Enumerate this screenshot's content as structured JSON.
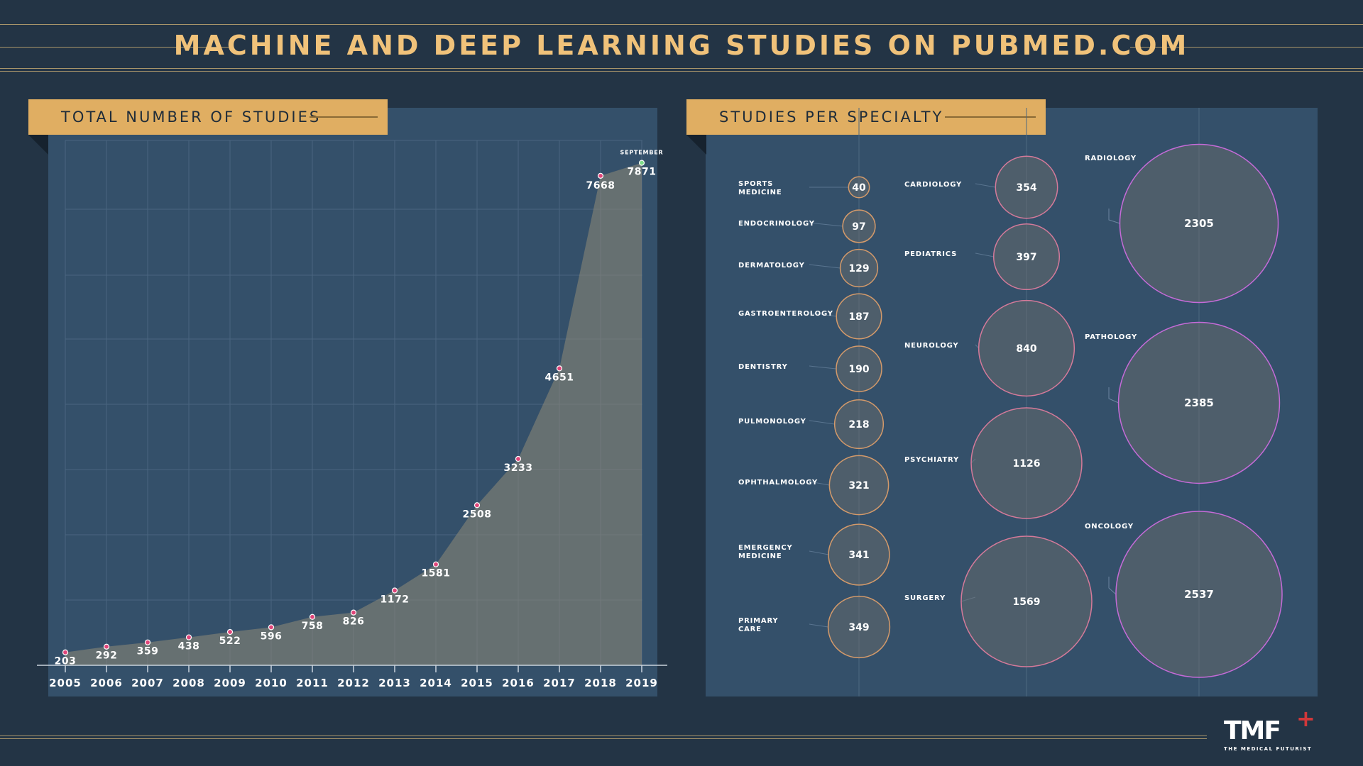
{
  "title": "MACHINE AND DEEP LEARNING STUDIES ON PUBMED.COM",
  "left_panel": {
    "header": "TOTAL NUMBER OF STUDIES"
  },
  "right_panel": {
    "header": "STUDIES PER SPECIALTY"
  },
  "logo": {
    "mark": "TMF",
    "plus": "+",
    "text": "THE MEDICAL FUTURIST"
  },
  "colors": {
    "background": "#233445",
    "panel": "#34506a",
    "title": "#f0c27a",
    "header_tab": "#e0ae62",
    "point": "#e0457a",
    "last_point": "#7ddc8a",
    "area_fill": "#8f8a77"
  },
  "chart_data": [
    {
      "type": "area",
      "title": "TOTAL NUMBER OF STUDIES",
      "categories": [
        "2005",
        "2006",
        "2007",
        "2008",
        "2009",
        "2010",
        "2011",
        "2012",
        "2013",
        "2014",
        "2015",
        "2016",
        "2017",
        "2018",
        "2019"
      ],
      "series": [
        {
          "values": [
            203,
            292,
            359,
            438,
            522,
            596,
            758,
            826,
            1172,
            1581,
            2508,
            3233,
            4651,
            7668,
            7871
          ]
        }
      ],
      "annotations": [
        {
          "category": "2019",
          "text": "SEPTEMBER"
        }
      ],
      "ylim": [
        0,
        8000
      ],
      "grid": true
    },
    {
      "type": "bubble",
      "title": "STUDIES PER SPECIALTY",
      "columns": [
        [
          {
            "label": "SPORTS\nMEDICINE",
            "value": 40
          },
          {
            "label": "ENDOCRINOLOGY",
            "value": 97
          },
          {
            "label": "DERMATOLOGY",
            "value": 129
          },
          {
            "label": "GASTROENTEROLOGY",
            "value": 187
          },
          {
            "label": "DENTISTRY",
            "value": 190
          },
          {
            "label": "PULMONOLOGY",
            "value": 218
          },
          {
            "label": "OPHTHALMOLOGY",
            "value": 321
          },
          {
            "label": "EMERGENCY\nMEDICINE",
            "value": 341
          },
          {
            "label": "PRIMARY\nCARE",
            "value": 349
          }
        ],
        [
          {
            "label": "CARDIOLOGY",
            "value": 354
          },
          {
            "label": "PEDIATRICS",
            "value": 397
          },
          {
            "label": "NEUROLOGY",
            "value": 840
          },
          {
            "label": "PSYCHIATRY",
            "value": 1126
          },
          {
            "label": "SURGERY",
            "value": 1569
          }
        ],
        [
          {
            "label": "RADIOLOGY",
            "value": 2305
          },
          {
            "label": "PATHOLOGY",
            "value": 2385
          },
          {
            "label": "ONCOLOGY",
            "value": 2537
          }
        ]
      ]
    }
  ]
}
